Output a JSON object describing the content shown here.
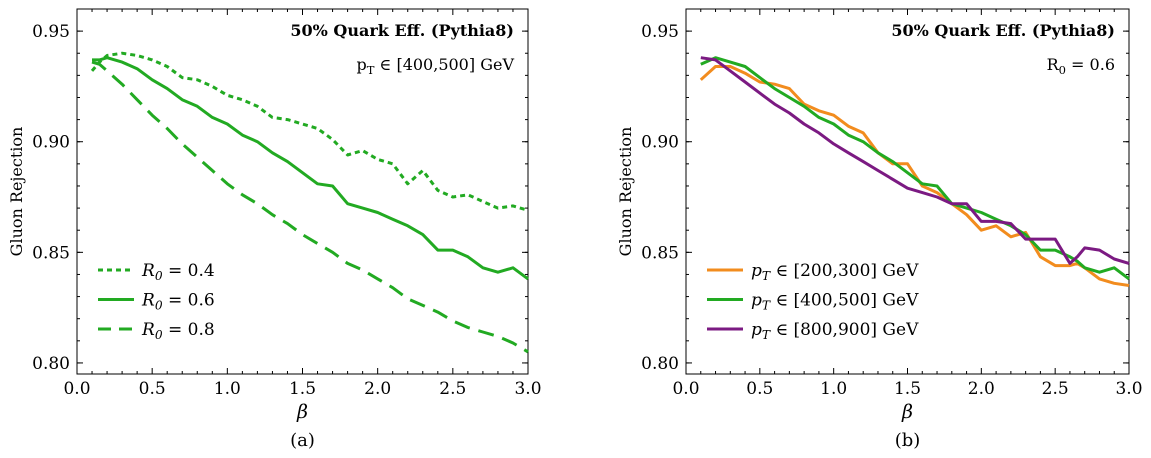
{
  "chart_data": [
    {
      "type": "line",
      "panel_label": "(a)",
      "title": "50% Quark Eff. (Pythia8)",
      "subtitle": "p_T ∈ [400,500] GeV",
      "xlabel": "β",
      "ylabel": "Gluon Rejection",
      "xlim": [
        0.0,
        3.0
      ],
      "ylim": [
        0.795,
        0.96
      ],
      "xticks": [
        "0.0",
        "0.5",
        "1.0",
        "1.5",
        "2.0",
        "2.5",
        "3.0"
      ],
      "yticks": [
        "0.80",
        "0.85",
        "0.90",
        "0.95"
      ],
      "legend_position": "bottom-left",
      "x": [
        0.1,
        0.15,
        0.2,
        0.3,
        0.4,
        0.5,
        0.6,
        0.7,
        0.8,
        0.9,
        1.0,
        1.1,
        1.2,
        1.3,
        1.4,
        1.5,
        1.6,
        1.7,
        1.8,
        1.9,
        2.0,
        2.1,
        2.2,
        2.3,
        2.4,
        2.5,
        2.6,
        2.7,
        2.8,
        2.9,
        3.0
      ],
      "series": [
        {
          "name": "R_0 = 0.4",
          "color": "#22aa22",
          "dash": "dotted",
          "values": [
            0.932,
            0.936,
            0.939,
            0.94,
            0.939,
            0.937,
            0.934,
            0.929,
            0.928,
            0.925,
            0.921,
            0.919,
            0.916,
            0.911,
            0.91,
            0.908,
            0.906,
            0.901,
            0.894,
            0.896,
            0.892,
            0.89,
            0.881,
            0.887,
            0.878,
            0.875,
            0.876,
            0.873,
            0.87,
            0.871,
            0.869
          ]
        },
        {
          "name": "R_0 = 0.6",
          "color": "#22aa22",
          "dash": "solid",
          "values": [
            0.937,
            0.937,
            0.938,
            0.936,
            0.933,
            0.928,
            0.924,
            0.919,
            0.916,
            0.911,
            0.908,
            0.903,
            0.9,
            0.895,
            0.891,
            0.886,
            0.881,
            0.88,
            0.872,
            0.87,
            0.868,
            0.865,
            0.862,
            0.858,
            0.851,
            0.851,
            0.848,
            0.843,
            0.841,
            0.843,
            0.838
          ]
        },
        {
          "name": "R_0 = 0.8",
          "color": "#22aa22",
          "dash": "dashed",
          "values": [
            0.936,
            0.935,
            0.932,
            0.926,
            0.919,
            0.912,
            0.906,
            0.899,
            0.893,
            0.887,
            0.881,
            0.876,
            0.872,
            0.867,
            0.863,
            0.858,
            0.854,
            0.85,
            0.845,
            0.842,
            0.838,
            0.834,
            0.829,
            0.826,
            0.823,
            0.819,
            0.816,
            0.814,
            0.812,
            0.809,
            0.805
          ]
        }
      ]
    },
    {
      "type": "line",
      "panel_label": "(b)",
      "title": "50% Quark Eff. (Pythia8)",
      "subtitle": "R_0 = 0.6",
      "xlabel": "β",
      "ylabel": "Gluon Rejection",
      "xlim": [
        0.0,
        3.0
      ],
      "ylim": [
        0.795,
        0.96
      ],
      "xticks": [
        "0.0",
        "0.5",
        "1.0",
        "1.5",
        "2.0",
        "2.5",
        "3.0"
      ],
      "yticks": [
        "0.80",
        "0.85",
        "0.90",
        "0.95"
      ],
      "legend_position": "bottom-left",
      "x": [
        0.1,
        0.2,
        0.3,
        0.4,
        0.5,
        0.6,
        0.7,
        0.8,
        0.9,
        1.0,
        1.1,
        1.2,
        1.3,
        1.4,
        1.5,
        1.6,
        1.7,
        1.8,
        1.9,
        2.0,
        2.1,
        2.2,
        2.3,
        2.4,
        2.5,
        2.6,
        2.65,
        2.7,
        2.8,
        2.9,
        3.0
      ],
      "series": [
        {
          "name": "p_T ∈ [200,300] GeV",
          "color": "#f28c1e",
          "dash": "solid",
          "values": [
            0.928,
            0.934,
            0.934,
            0.931,
            0.927,
            0.926,
            0.924,
            0.917,
            0.914,
            0.912,
            0.907,
            0.904,
            0.895,
            0.89,
            0.89,
            0.88,
            0.877,
            0.872,
            0.867,
            0.86,
            0.862,
            0.857,
            0.859,
            0.848,
            0.844,
            0.844,
            0.845,
            0.843,
            0.838,
            0.836,
            0.835
          ]
        },
        {
          "name": "p_T ∈ [400,500] GeV",
          "color": "#22aa22",
          "dash": "solid",
          "values": [
            0.935,
            0.938,
            0.936,
            0.934,
            0.929,
            0.924,
            0.92,
            0.916,
            0.911,
            0.908,
            0.903,
            0.9,
            0.895,
            0.891,
            0.886,
            0.881,
            0.88,
            0.872,
            0.87,
            0.868,
            0.865,
            0.862,
            0.858,
            0.851,
            0.851,
            0.848,
            0.846,
            0.843,
            0.841,
            0.843,
            0.838
          ]
        },
        {
          "name": "p_T ∈ [800,900] GeV",
          "color": "#7b1a82",
          "dash": "solid",
          "values": [
            0.938,
            0.937,
            0.932,
            0.927,
            0.922,
            0.917,
            0.913,
            0.908,
            0.904,
            0.899,
            0.895,
            0.891,
            0.887,
            0.883,
            0.879,
            0.877,
            0.875,
            0.872,
            0.872,
            0.864,
            0.864,
            0.863,
            0.856,
            0.856,
            0.856,
            0.845,
            0.848,
            0.852,
            0.851,
            0.847,
            0.845
          ]
        }
      ]
    }
  ]
}
